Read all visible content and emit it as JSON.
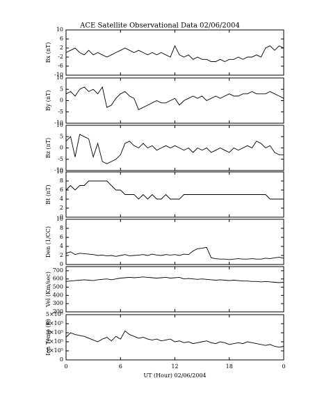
{
  "chart_data": [
    {
      "type": "line",
      "title": "ACE Satellite Observational Data   02/06/2004",
      "ylabel": "Bx (nT)",
      "color": "#000000",
      "xlim": [
        0,
        24
      ],
      "ylim": [
        -10,
        10
      ],
      "yticks": [
        -10,
        -6,
        -2,
        2,
        6,
        10
      ],
      "x": [
        0,
        0.5,
        1,
        1.5,
        2,
        2.5,
        3,
        3.5,
        4,
        4.5,
        5,
        5.5,
        6,
        6.5,
        7,
        7.5,
        8,
        8.5,
        9,
        9.5,
        10,
        10.5,
        11,
        11.5,
        12,
        12.5,
        13,
        13.5,
        14,
        14.5,
        15,
        15.5,
        16,
        16.5,
        17,
        17.5,
        18,
        18.5,
        19,
        19.5,
        20,
        20.5,
        21,
        21.5,
        22,
        22.5,
        23,
        23.5,
        24
      ],
      "values": [
        0,
        1,
        2,
        0,
        -1,
        1,
        -1,
        0,
        -1,
        -2,
        -1,
        0,
        1,
        2,
        1,
        0,
        1,
        0,
        -1,
        0,
        -1,
        0,
        -1,
        -2,
        3,
        -1,
        -2,
        -1,
        -3,
        -2,
        -3,
        -3,
        -4,
        -4,
        -3,
        -4,
        -3,
        -3,
        -2,
        -3,
        -2,
        -2,
        -1,
        -2,
        2,
        3,
        1,
        3,
        2
      ]
    },
    {
      "type": "line",
      "ylabel": "By (nT)",
      "color": "#000000",
      "xlim": [
        0,
        24
      ],
      "ylim": [
        -10,
        10
      ],
      "yticks": [
        -10,
        -5,
        0,
        5,
        10
      ],
      "x": [
        0,
        0.5,
        1,
        1.5,
        2,
        2.5,
        3,
        3.5,
        4,
        4.5,
        5,
        5.5,
        6,
        6.5,
        7,
        7.5,
        8,
        8.5,
        9,
        9.5,
        10,
        10.5,
        11,
        11.5,
        12,
        12.5,
        13,
        13.5,
        14,
        14.5,
        15,
        15.5,
        16,
        16.5,
        17,
        17.5,
        18,
        18.5,
        19,
        19.5,
        20,
        20.5,
        21,
        21.5,
        22,
        22.5,
        23,
        23.5,
        24
      ],
      "values": [
        3,
        4,
        2,
        5,
        6,
        4,
        5,
        3,
        6,
        -3,
        -2,
        1,
        3,
        4,
        2,
        1,
        -4,
        -3,
        -2,
        -1,
        0,
        -1,
        -1,
        0,
        1,
        -2,
        0,
        1,
        2,
        1,
        2,
        0,
        1,
        2,
        1,
        2,
        3,
        2,
        2,
        3,
        3,
        4,
        3,
        3,
        3,
        4,
        3,
        2,
        1
      ]
    },
    {
      "type": "line",
      "ylabel": "Bz (nT)",
      "color": "#000000",
      "xlim": [
        0,
        24
      ],
      "ylim": [
        -10,
        10
      ],
      "yticks": [
        -10,
        -5,
        0,
        5,
        10
      ],
      "x": [
        0,
        0.5,
        1,
        1.5,
        2,
        2.5,
        3,
        3.5,
        4,
        4.5,
        5,
        5.5,
        6,
        6.5,
        7,
        7.5,
        8,
        8.5,
        9,
        9.5,
        10,
        10.5,
        11,
        11.5,
        12,
        12.5,
        13,
        13.5,
        14,
        14.5,
        15,
        15.5,
        16,
        16.5,
        17,
        17.5,
        18,
        18.5,
        19,
        19.5,
        20,
        20.5,
        21,
        21.5,
        22,
        22.5,
        23,
        23.5,
        24
      ],
      "values": [
        3,
        5,
        -4,
        6,
        5,
        4,
        -4,
        2,
        -6,
        -7,
        -6,
        -5,
        -3,
        2,
        3,
        1,
        0,
        2,
        0,
        1,
        -1,
        0,
        1,
        0,
        1,
        0,
        -1,
        0,
        -2,
        0,
        -1,
        0,
        -2,
        -1,
        0,
        -1,
        -2,
        0,
        -1,
        0,
        1,
        0,
        3,
        2,
        0,
        1,
        -2,
        -3,
        -3
      ]
    },
    {
      "type": "line",
      "ylabel": "Bt (nT)",
      "color": "#000000",
      "xlim": [
        0,
        24
      ],
      "ylim": [
        0,
        10
      ],
      "yticks": [
        0,
        2,
        4,
        6,
        8,
        10
      ],
      "x": [
        0,
        0.5,
        1,
        1.5,
        2,
        2.5,
        3,
        3.5,
        4,
        4.5,
        5,
        5.5,
        6,
        6.5,
        7,
        7.5,
        8,
        8.5,
        9,
        9.5,
        10,
        10.5,
        11,
        11.5,
        12,
        12.5,
        13,
        13.5,
        14,
        14.5,
        15,
        15.5,
        16,
        16.5,
        17,
        17.5,
        18,
        18.5,
        19,
        19.5,
        20,
        20.5,
        21,
        21.5,
        22,
        22.5,
        23,
        23.5,
        24
      ],
      "values": [
        6,
        7,
        6,
        7,
        7,
        8,
        8,
        8,
        8,
        8,
        7,
        6,
        6,
        5,
        5,
        5,
        4,
        5,
        4,
        5,
        4,
        4,
        5,
        4,
        4,
        4,
        5,
        5,
        5,
        5,
        5,
        5,
        5,
        5,
        5,
        5,
        5,
        5,
        5,
        5,
        5,
        5,
        5,
        5,
        5,
        4,
        4,
        4,
        4
      ]
    },
    {
      "type": "line",
      "ylabel": "Den (1/CC)",
      "color": "#000000",
      "xlim": [
        0,
        24
      ],
      "ylim": [
        0,
        10
      ],
      "yticks": [
        0,
        2,
        4,
        6,
        8,
        10
      ],
      "x": [
        0,
        0.5,
        1,
        1.5,
        2,
        2.5,
        3,
        3.5,
        4,
        4.5,
        5,
        5.5,
        6,
        6.5,
        7,
        7.5,
        8,
        8.5,
        9,
        9.5,
        10,
        10.5,
        11,
        11.5,
        12,
        12.5,
        13,
        13.5,
        14,
        14.5,
        15,
        15.5,
        16,
        16.5,
        17,
        17.5,
        18,
        18.5,
        19,
        19.5,
        20,
        20.5,
        21,
        21.5,
        22,
        22.5,
        23,
        23.5,
        24
      ],
      "values": [
        2.5,
        2.8,
        2.2,
        2.5,
        2.4,
        2.3,
        2.2,
        2.0,
        2.1,
        1.9,
        2.0,
        1.8,
        2.0,
        2.2,
        1.9,
        2.0,
        2.1,
        2.2,
        2.0,
        2.3,
        2.1,
        2.0,
        2.2,
        2.1,
        2.2,
        2.0,
        2.3,
        2.2,
        3.0,
        3.5,
        3.6,
        3.8,
        1.5,
        1.3,
        1.2,
        1.2,
        1.1,
        1.2,
        1.3,
        1.2,
        1.2,
        1.3,
        1.2,
        1.2,
        1.4,
        1.3,
        1.5,
        1.6,
        1.4
      ]
    },
    {
      "type": "line",
      "ylabel": "Vel (Km/sec)",
      "color": "#000000",
      "xlim": [
        0,
        24
      ],
      "ylim": [
        200,
        750
      ],
      "yticks": [
        200,
        300,
        400,
        500,
        600,
        700
      ],
      "x": [
        0,
        0.5,
        1,
        1.5,
        2,
        2.5,
        3,
        3.5,
        4,
        4.5,
        5,
        5.5,
        6,
        6.5,
        7,
        7.5,
        8,
        8.5,
        9,
        9.5,
        10,
        10.5,
        11,
        11.5,
        12,
        12.5,
        13,
        13.5,
        14,
        14.5,
        15,
        15.5,
        16,
        16.5,
        17,
        17.5,
        18,
        18.5,
        19,
        19.5,
        20,
        20.5,
        21,
        21.5,
        22,
        22.5,
        23,
        23.5,
        24
      ],
      "values": [
        570,
        575,
        580,
        585,
        590,
        585,
        580,
        590,
        595,
        600,
        590,
        600,
        610,
        615,
        620,
        615,
        620,
        625,
        620,
        615,
        610,
        615,
        620,
        610,
        615,
        620,
        600,
        605,
        600,
        595,
        600,
        595,
        590,
        585,
        590,
        585,
        580,
        585,
        580,
        575,
        575,
        570,
        570,
        565,
        570,
        565,
        560,
        555,
        560
      ]
    },
    {
      "type": "line",
      "ylabel": "Ion Temp (K)",
      "xlabel": "UT (Hour)   02/06/2004",
      "color": "#000000",
      "xlim": [
        0,
        24
      ],
      "xticks": [
        0,
        6,
        12,
        18,
        {
          "value": 24,
          "label": "0"
        }
      ],
      "ylim": [
        0,
        500000
      ],
      "yticks": [
        0,
        {
          "value": 100000,
          "label": "1×10⁵"
        },
        {
          "value": 200000,
          "label": "2×10⁵"
        },
        {
          "value": 300000,
          "label": "3×10⁵"
        },
        {
          "value": 400000,
          "label": "4×10⁵"
        },
        {
          "value": 500000,
          "label": "5×10⁵"
        }
      ],
      "x": [
        0,
        0.5,
        1,
        1.5,
        2,
        2.5,
        3,
        3.5,
        4,
        4.5,
        5,
        5.5,
        6,
        6.5,
        7,
        7.5,
        8,
        8.5,
        9,
        9.5,
        10,
        10.5,
        11,
        11.5,
        12,
        12.5,
        13,
        13.5,
        14,
        14.5,
        15,
        15.5,
        16,
        16.5,
        17,
        17.5,
        18,
        18.5,
        19,
        19.5,
        20,
        20.5,
        21,
        21.5,
        22,
        22.5,
        23,
        23.5,
        24
      ],
      "values": [
        250000,
        300000,
        280000,
        270000,
        260000,
        240000,
        220000,
        200000,
        230000,
        250000,
        210000,
        260000,
        230000,
        320000,
        280000,
        260000,
        240000,
        250000,
        230000,
        220000,
        230000,
        210000,
        220000,
        230000,
        200000,
        210000,
        190000,
        200000,
        180000,
        190000,
        200000,
        210000,
        190000,
        180000,
        200000,
        190000,
        170000,
        180000,
        190000,
        180000,
        200000,
        190000,
        180000,
        170000,
        160000,
        170000,
        150000,
        140000,
        150000
      ]
    }
  ]
}
